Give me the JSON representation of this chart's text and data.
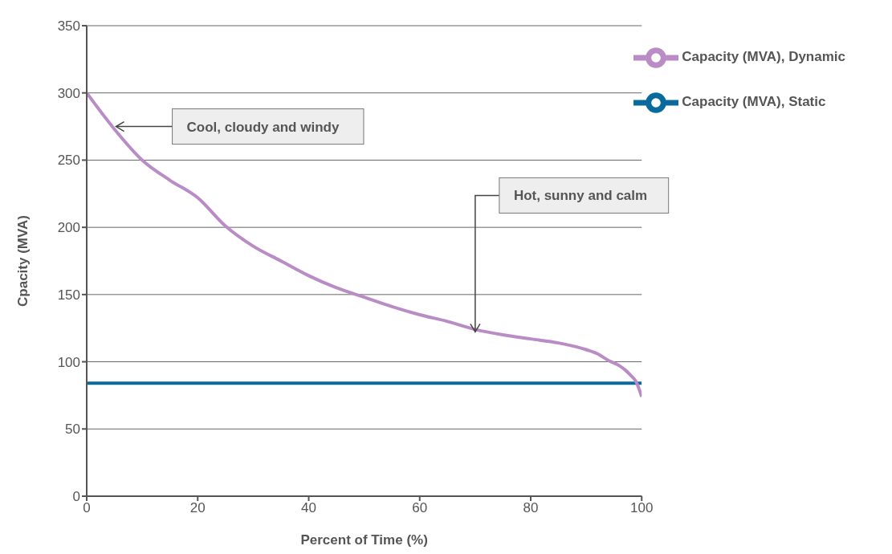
{
  "chart_data": {
    "type": "line",
    "xlabel": "Percent of Time (%)",
    "ylabel": "Cpacity (MVA)",
    "xlim": [
      0,
      100
    ],
    "xticks": [
      0,
      20,
      40,
      60,
      80,
      100
    ],
    "ylim": [
      0,
      350
    ],
    "yticks": [
      0,
      50,
      100,
      150,
      200,
      250,
      300,
      350
    ],
    "grid": "y",
    "legend": "top right",
    "marker": "none",
    "line_style": "solid",
    "series": [
      {
        "name": "Capacity (MVA), Static",
        "color": "#0a6a9c",
        "x": [
          0,
          100
        ],
        "values": [
          84,
          84
        ]
      },
      {
        "name": "Capacity (MVA), Dynamic",
        "color": "#b98cc6",
        "x": [
          0,
          5,
          10,
          15,
          20,
          25,
          30,
          35,
          40,
          45,
          50,
          55,
          60,
          65,
          70,
          75,
          80,
          85,
          90,
          92,
          94,
          96,
          97,
          98,
          99,
          100
        ],
        "values": [
          300,
          273,
          250,
          235,
          222,
          201,
          186,
          175,
          164,
          155,
          148,
          141,
          135,
          130,
          124,
          120,
          117,
          114,
          109,
          106,
          101,
          97,
          94,
          90,
          85,
          74
        ]
      }
    ],
    "annotations": [
      {
        "text": "Cool, cloudy and windy",
        "x": 5,
        "y": 275
      },
      {
        "text": "Hot, sunny and calm",
        "x": 70,
        "y": 121
      }
    ]
  }
}
